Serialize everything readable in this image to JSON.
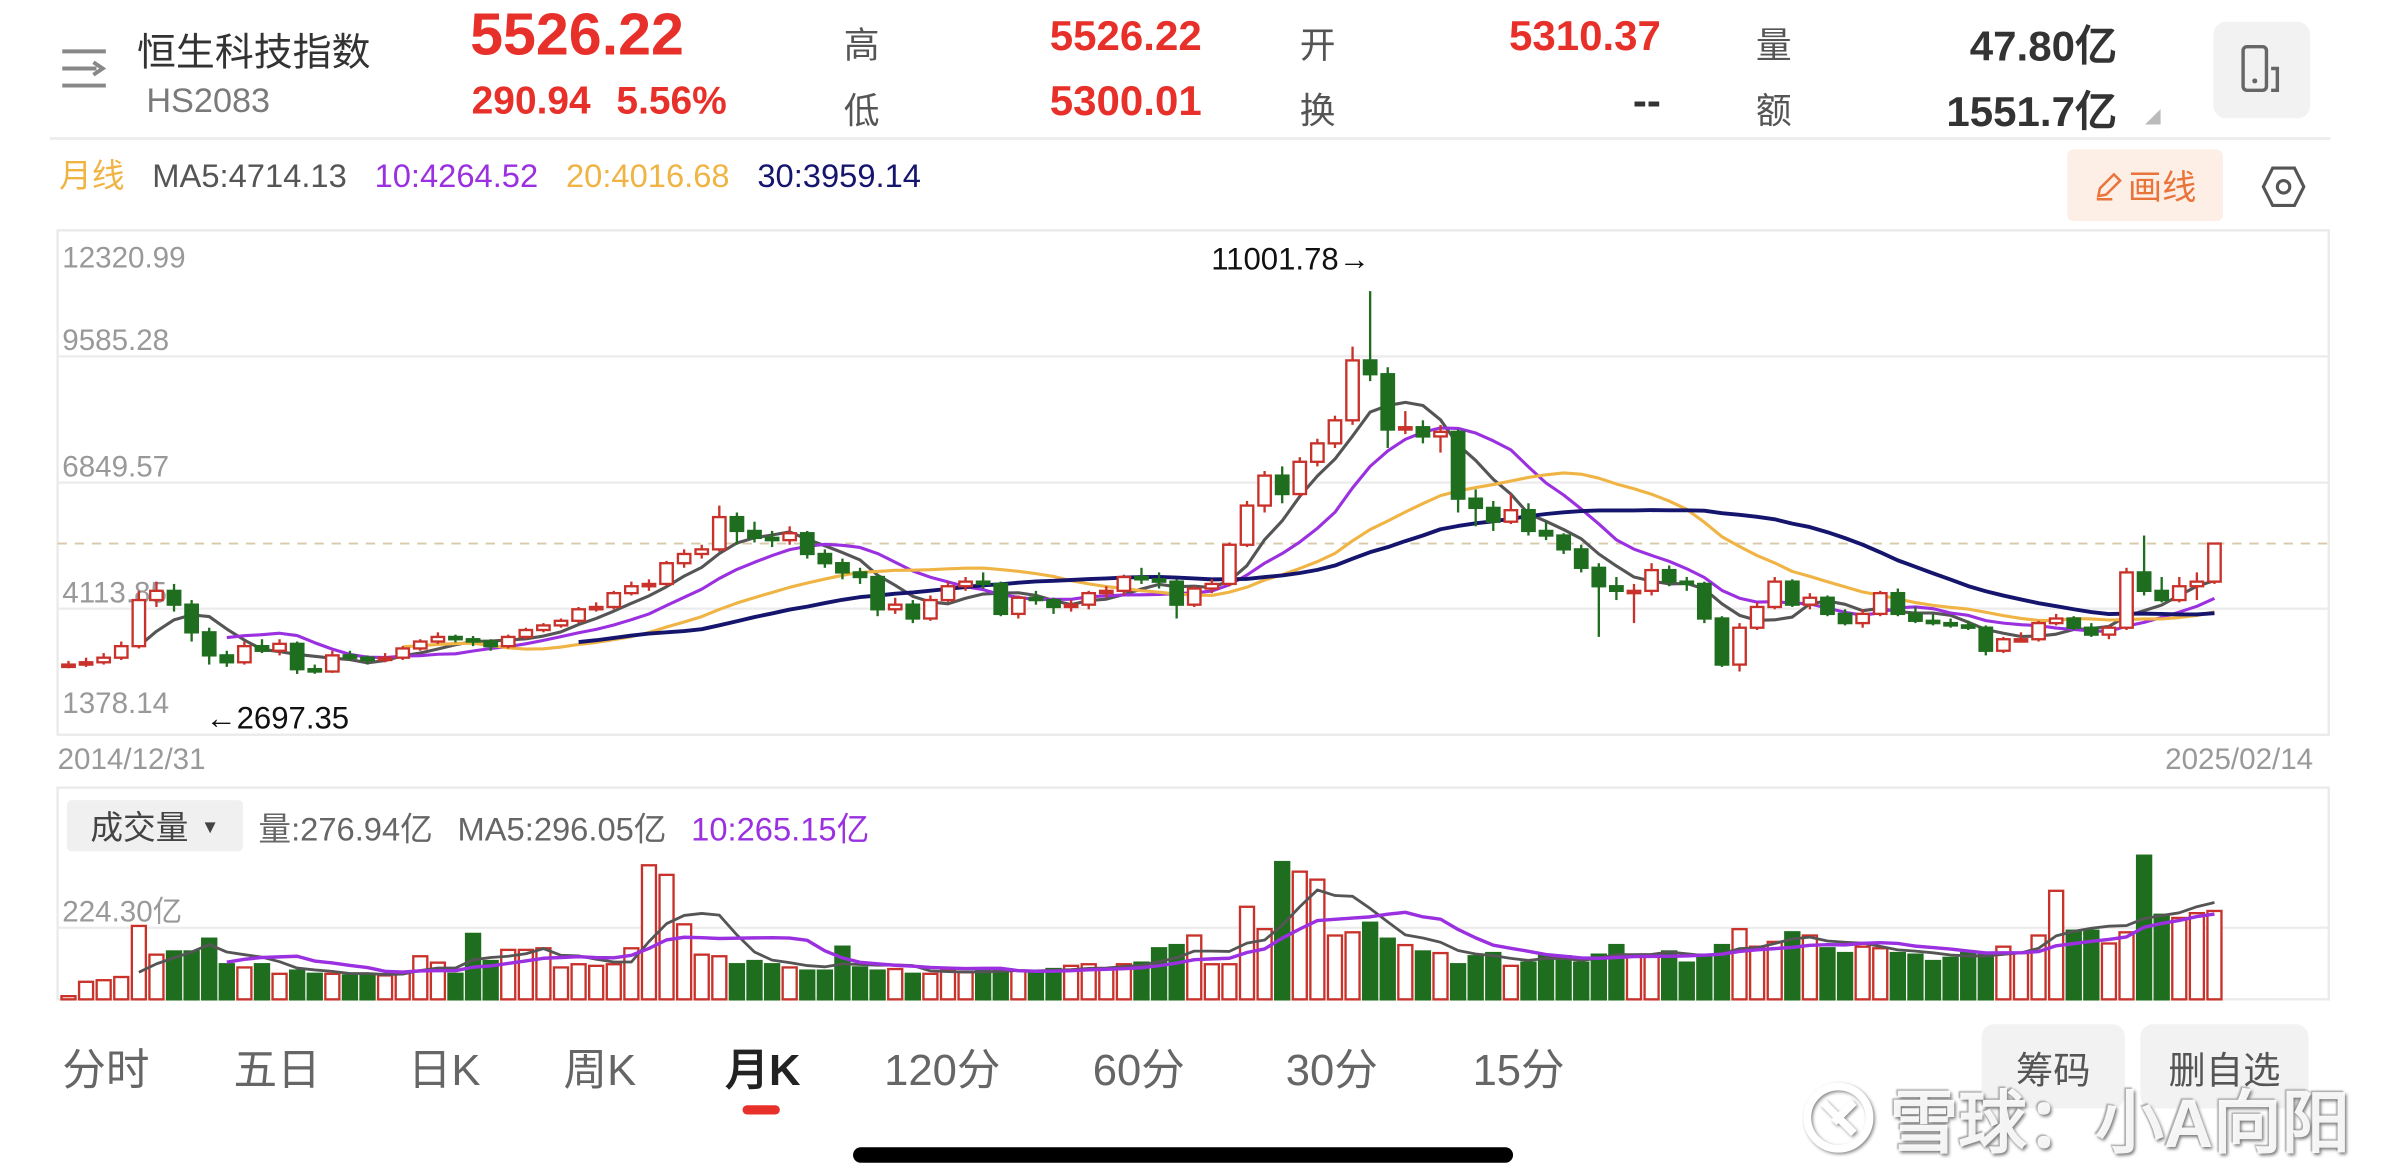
{
  "header": {
    "menu_icon": "menu-arrow-icon",
    "name": "恒生科技指数",
    "code": "HS2083",
    "price": "5526.22",
    "change": "290.94",
    "change_pct": "5.56%",
    "stats": [
      {
        "label": "高",
        "value": "5526.22",
        "color": "#e8302a"
      },
      {
        "label": "开",
        "value": "5310.37",
        "color": "#e8302a"
      },
      {
        "label": "量",
        "value": "47.80亿",
        "color": "#333333"
      },
      {
        "label": "低",
        "value": "5300.01",
        "color": "#e8302a"
      },
      {
        "label": "换",
        "value": "--",
        "color": "#333333"
      },
      {
        "label": "额",
        "value": "1551.7亿",
        "color": "#333333"
      }
    ],
    "device_icon": "phone-landscape-icon"
  },
  "ma_legend": {
    "period": "月线",
    "ma5": "MA5:4714.13",
    "ma10": "10:4264.52",
    "ma20": "20:4016.68",
    "ma30": "30:3959.14",
    "draw_button": "画线",
    "settings_icon": "settings-hexagon-icon"
  },
  "colors": {
    "up": "#c8322a",
    "down": "#1f6e1f",
    "ma5": "#555555",
    "ma10": "#9b30e0",
    "ma20": "#f0b445",
    "ma30": "#15156e",
    "accent": "#e8302a"
  },
  "chart_data": [
    {
      "type": "candlestick",
      "title": "恒生科技指数 月K",
      "ylim": [
        1378.14,
        12320.99
      ],
      "y_ticks": [
        "12320.99",
        "9585.28",
        "6849.57",
        "4113.85",
        "1378.14"
      ],
      "x_start_label": "2014/12/31",
      "x_end_label": "2025/02/14",
      "reference_line": 5526.22,
      "annotations": {
        "high": "11001.78→",
        "low": "←2697.35"
      },
      "grid": true,
      "ohlc": [
        [
          2850,
          2980,
          2820,
          2900
        ],
        [
          2900,
          3050,
          2850,
          2950
        ],
        [
          2950,
          3150,
          2900,
          3050
        ],
        [
          3050,
          3400,
          3000,
          3300
        ],
        [
          3300,
          4500,
          3250,
          4300
        ],
        [
          4300,
          4700,
          4150,
          4500
        ],
        [
          4500,
          4650,
          4050,
          4200
        ],
        [
          4200,
          4300,
          3400,
          3600
        ],
        [
          3600,
          3700,
          2900,
          3100
        ],
        [
          3100,
          3200,
          2850,
          2950
        ],
        [
          2950,
          3400,
          2900,
          3300
        ],
        [
          3300,
          3450,
          3150,
          3200
        ],
        [
          3200,
          3450,
          3100,
          3350
        ],
        [
          3350,
          3400,
          2697.35,
          2800
        ],
        [
          2800,
          2900,
          2700,
          2750
        ],
        [
          2750,
          3200,
          2720,
          3100
        ],
        [
          3100,
          3200,
          2980,
          3050
        ],
        [
          3050,
          3100,
          2900,
          3000
        ],
        [
          3000,
          3150,
          2950,
          3050
        ],
        [
          3050,
          3300,
          3000,
          3250
        ],
        [
          3250,
          3450,
          3200,
          3400
        ],
        [
          3400,
          3600,
          3350,
          3500
        ],
        [
          3500,
          3550,
          3380,
          3450
        ],
        [
          3450,
          3520,
          3300,
          3400
        ],
        [
          3400,
          3450,
          3200,
          3300
        ],
        [
          3300,
          3550,
          3250,
          3500
        ],
        [
          3500,
          3700,
          3450,
          3650
        ],
        [
          3650,
          3800,
          3600,
          3750
        ],
        [
          3750,
          3900,
          3700,
          3850
        ],
        [
          3850,
          4150,
          3800,
          4100
        ],
        [
          4100,
          4250,
          4050,
          4150
        ],
        [
          4150,
          4500,
          4100,
          4450
        ],
        [
          4450,
          4700,
          4400,
          4600
        ],
        [
          4600,
          4750,
          4500,
          4650
        ],
        [
          4650,
          5150,
          4600,
          5100
        ],
        [
          5100,
          5400,
          5000,
          5300
        ],
        [
          5300,
          5500,
          5200,
          5400
        ],
        [
          5400,
          6350,
          5350,
          6100
        ],
        [
          6100,
          6200,
          5500,
          5800
        ],
        [
          5800,
          6000,
          5550,
          5650
        ],
        [
          5650,
          5800,
          5450,
          5600
        ],
        [
          5600,
          5900,
          5500,
          5750
        ],
        [
          5750,
          5800,
          5200,
          5300
        ],
        [
          5300,
          5400,
          5000,
          5100
        ],
        [
          5100,
          5200,
          4750,
          4900
        ],
        [
          4900,
          5000,
          4650,
          4800
        ],
        [
          4800,
          4850,
          3950,
          4100
        ],
        [
          4100,
          4350,
          4000,
          4200
        ],
        [
          4200,
          4300,
          3800,
          3900
        ],
        [
          3900,
          4400,
          3850,
          4300
        ],
        [
          4300,
          4700,
          4250,
          4600
        ],
        [
          4600,
          4800,
          4500,
          4700
        ],
        [
          4700,
          4900,
          4550,
          4650
        ],
        [
          4650,
          4700,
          3950,
          4000
        ],
        [
          4000,
          4400,
          3900,
          4350
        ],
        [
          4350,
          4500,
          4200,
          4300
        ],
        [
          4300,
          4350,
          4000,
          4150
        ],
        [
          4150,
          4300,
          4050,
          4200
        ],
        [
          4200,
          4500,
          4100,
          4450
        ],
        [
          4450,
          4600,
          4350,
          4500
        ],
        [
          4500,
          4850,
          4400,
          4800
        ],
        [
          4800,
          5000,
          4650,
          4750
        ],
        [
          4750,
          4900,
          4550,
          4700
        ],
        [
          4700,
          4750,
          3900,
          4200
        ],
        [
          4200,
          4600,
          4150,
          4550
        ],
        [
          4550,
          4750,
          4450,
          4650
        ],
        [
          4650,
          5550,
          4600,
          5500
        ],
        [
          5500,
          6450,
          5450,
          6350
        ],
        [
          6350,
          7100,
          6200,
          7000
        ],
        [
          7000,
          7200,
          6400,
          6600
        ],
        [
          6600,
          7400,
          6550,
          7300
        ],
        [
          7300,
          7800,
          7200,
          7700
        ],
        [
          7700,
          8300,
          7600,
          8200
        ],
        [
          8200,
          9800,
          8100,
          9500
        ],
        [
          9500,
          11001.78,
          9050,
          9200
        ],
        [
          9200,
          9350,
          7600,
          8000
        ],
        [
          8000,
          8400,
          7900,
          8050
        ],
        [
          8050,
          8200,
          7700,
          7850
        ],
        [
          7850,
          8100,
          7500,
          7950
        ],
        [
          7950,
          8000,
          6200,
          6500
        ],
        [
          6500,
          6700,
          5900,
          6300
        ],
        [
          6300,
          6450,
          5800,
          6000
        ],
        [
          6000,
          6600,
          5950,
          6250
        ],
        [
          6250,
          6400,
          5700,
          5800
        ],
        [
          5800,
          6000,
          5600,
          5700
        ],
        [
          5700,
          5750,
          5300,
          5400
        ],
        [
          5400,
          5500,
          4900,
          5000
        ],
        [
          5000,
          5100,
          3500,
          4600
        ],
        [
          4600,
          4800,
          4300,
          4500
        ],
        [
          4500,
          4650,
          3800,
          4500
        ],
        [
          4500,
          5100,
          4400,
          4950
        ],
        [
          4950,
          5050,
          4600,
          4700
        ],
        [
          4700,
          4800,
          4500,
          4650
        ],
        [
          4650,
          4700,
          3800,
          3900
        ],
        [
          3900,
          3950,
          2850,
          2900
        ],
        [
          2900,
          3800,
          2750,
          3700
        ],
        [
          3700,
          4250,
          3650,
          4150
        ],
        [
          4150,
          4800,
          4100,
          4700
        ],
        [
          4700,
          4750,
          4150,
          4200
        ],
        [
          4200,
          4450,
          4100,
          4350
        ],
        [
          4350,
          4400,
          3950,
          4000
        ],
        [
          4000,
          4100,
          3750,
          3800
        ],
        [
          3800,
          4100,
          3700,
          4000
        ],
        [
          4000,
          4500,
          3950,
          4450
        ],
        [
          4450,
          4550,
          3950,
          4000
        ],
        [
          4000,
          4150,
          3800,
          3850
        ],
        [
          3850,
          4000,
          3750,
          3800
        ],
        [
          3800,
          3900,
          3700,
          3750
        ],
        [
          3750,
          3850,
          3650,
          3700
        ],
        [
          3700,
          3750,
          3100,
          3200
        ],
        [
          3200,
          3500,
          3150,
          3450
        ],
        [
          3450,
          3600,
          3400,
          3450
        ],
        [
          3450,
          3850,
          3400,
          3800
        ],
        [
          3800,
          4000,
          3750,
          3900
        ],
        [
          3900,
          3950,
          3650,
          3700
        ],
        [
          3700,
          3800,
          3500,
          3550
        ],
        [
          3550,
          3750,
          3450,
          3700
        ],
        [
          3700,
          5000,
          3650,
          4900
        ],
        [
          4900,
          5700,
          4400,
          4500
        ],
        [
          4500,
          4800,
          4250,
          4300
        ],
        [
          4300,
          4800,
          4250,
          4600
        ],
        [
          4600,
          4900,
          4300,
          4700
        ],
        [
          4700,
          5526.22,
          4650,
          5526.22
        ]
      ],
      "moving_averages": [
        5,
        10,
        20,
        30
      ]
    },
    {
      "type": "bar",
      "title": "成交量",
      "unit": "亿",
      "y_tick": "224.30亿",
      "y_tick_value": 224.3,
      "ylim": [
        0,
        470
      ],
      "values": [
        10,
        55,
        60,
        70,
        230,
        140,
        150,
        150,
        190,
        110,
        100,
        110,
        80,
        90,
        80,
        80,
        75,
        80,
        75,
        85,
        135,
        115,
        80,
        205,
        120,
        155,
        155,
        160,
        100,
        110,
        105,
        110,
        160,
        420,
        390,
        235,
        140,
        135,
        110,
        120,
        110,
        100,
        90,
        90,
        165,
        100,
        90,
        95,
        80,
        80,
        90,
        85,
        95,
        90,
        90,
        85,
        95,
        105,
        110,
        95,
        110,
        115,
        160,
        170,
        200,
        110,
        110,
        290,
        220,
        430,
        400,
        375,
        200,
        210,
        240,
        190,
        170,
        150,
        145,
        110,
        135,
        145,
        105,
        115,
        140,
        135,
        115,
        140,
        170,
        140,
        140,
        150,
        115,
        140,
        170,
        220,
        165,
        180,
        210,
        200,
        160,
        145,
        165,
        160,
        145,
        140,
        120,
        130,
        145,
        145,
        165,
        145,
        200,
        340,
        215,
        215,
        175,
        210,
        450,
        265,
        255,
        270,
        276.94
      ],
      "legend": {
        "selector": "成交量",
        "vol": "量:276.94亿",
        "ma5": "MA5:296.05亿",
        "ma10": "10:265.15亿"
      }
    }
  ],
  "tabs": [
    {
      "label": "分时"
    },
    {
      "label": "五日"
    },
    {
      "label": "日K"
    },
    {
      "label": "周K"
    },
    {
      "label": "月K",
      "active": true
    },
    {
      "label": "120分"
    },
    {
      "label": "60分"
    },
    {
      "label": "30分"
    },
    {
      "label": "15分"
    }
  ],
  "actions": {
    "chips": "筹码",
    "remove_watchlist": "删自选"
  },
  "watermark": "雪球：小A向阳"
}
